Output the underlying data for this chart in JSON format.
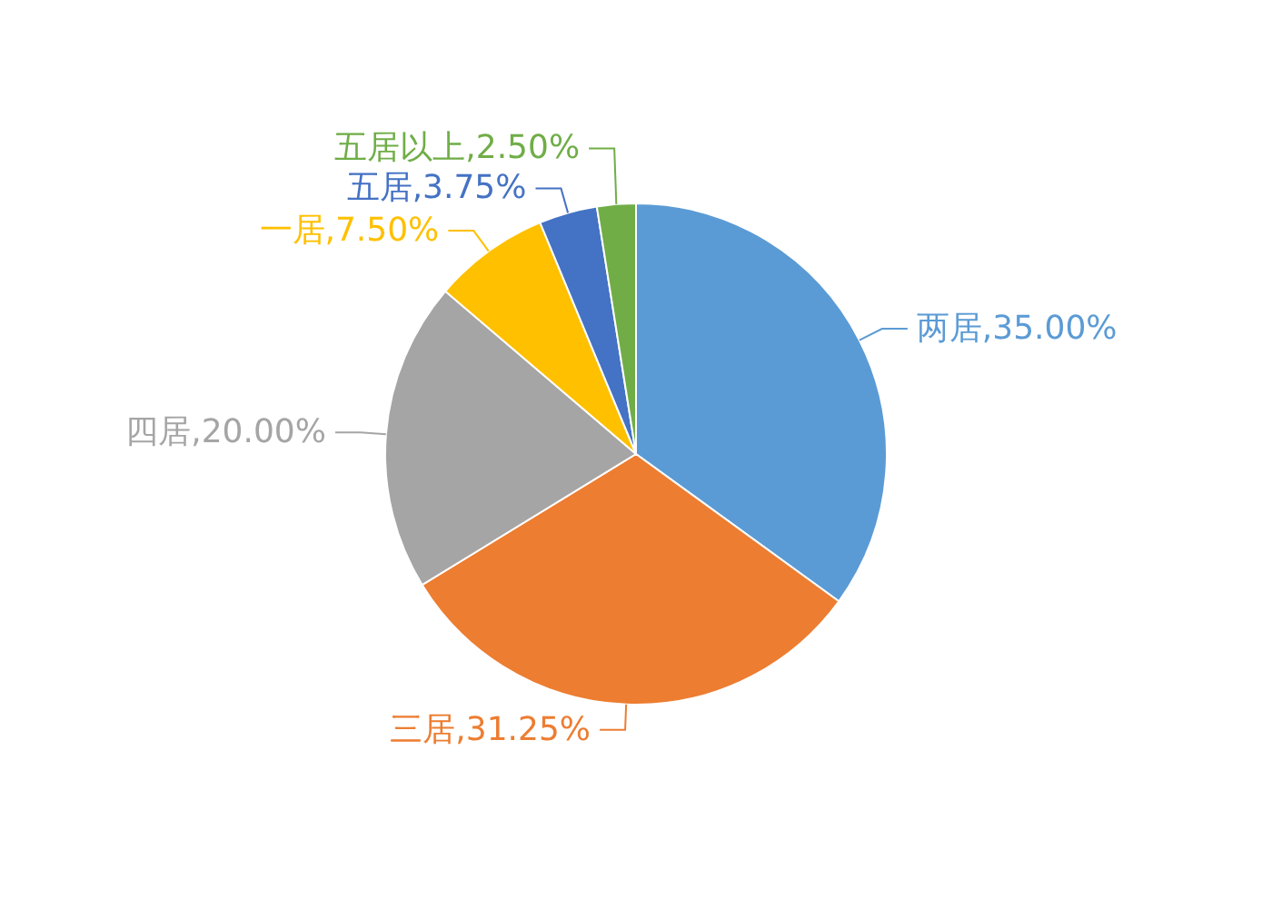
{
  "chart_data": {
    "type": "pie",
    "categories": [
      "两居",
      "三居",
      "四居",
      "一居",
      "五居",
      "五居以上"
    ],
    "values": [
      35,
      31.25,
      20,
      7.5,
      3.75,
      2.5
    ],
    "value_labels": [
      "35.00%",
      "31.25%",
      "20.00%",
      "7.50%",
      "3.75%",
      "2.50%"
    ],
    "colors": [
      "#5b9bd5",
      "#ed7d31",
      "#a5a5a5",
      "#ffc000",
      "#4472c4",
      "#70ad47"
    ]
  }
}
